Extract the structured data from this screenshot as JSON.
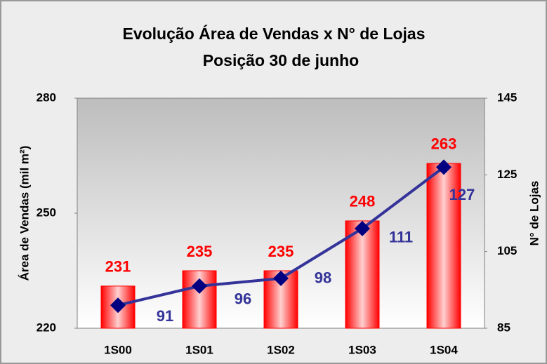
{
  "chart_data": {
    "type": "bar",
    "title": "Evolução Área de Vendas x N° de Lojas",
    "subtitle": "Posição 30 de junho",
    "y_label": "Área de Vendas (mil m²)",
    "y2_label": "N° de Lojas",
    "categories": [
      "1S00",
      "1S01",
      "1S02",
      "1S03",
      "1S04"
    ],
    "series": [
      {
        "name": "Área de Vendas",
        "type": "bar",
        "color": "#ff0000",
        "values": [
          231,
          235,
          235,
          248,
          263
        ],
        "label_color": "#ff0000"
      },
      {
        "name": "N° de Lojas",
        "type": "line",
        "axis": "y2",
        "color": "#333399",
        "marker_color": "#000080",
        "values": [
          91,
          96,
          98,
          111,
          127
        ]
      }
    ],
    "ylim": [
      220,
      280
    ],
    "yticks": [
      220,
      250,
      280
    ],
    "y2lim": [
      85,
      145
    ],
    "y2ticks": [
      85,
      105,
      125,
      145
    ]
  }
}
